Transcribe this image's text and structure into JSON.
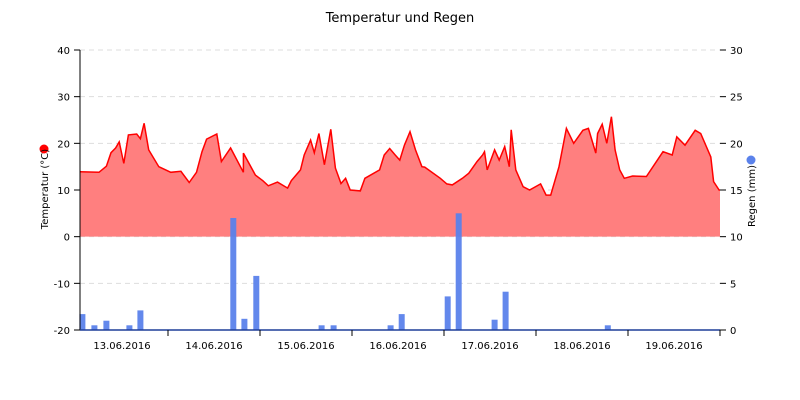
{
  "chart_data": {
    "type": "area+bar",
    "title": "Temperatur und Regen",
    "xlabel": "",
    "x_tick_labels": [
      "13.06.2016",
      "14.06.2016",
      "15.06.2016",
      "16.06.2016",
      "17.06.2016",
      "18.06.2016",
      "19.06.2016"
    ],
    "y_left": {
      "label": "Temperatur (°C)",
      "ticks": [
        40,
        30,
        20,
        10,
        0,
        -10,
        -20
      ],
      "ylim": [
        -20,
        40
      ],
      "legend_color": "#ff0000"
    },
    "y_right": {
      "label": "Regen (mm)",
      "ticks": [
        30,
        25,
        20,
        15,
        10,
        5,
        0
      ],
      "ylim": [
        0,
        30
      ],
      "legend_color": "#5b82eb"
    },
    "grid": true,
    "series": [
      {
        "name": "Temperatur (°C)",
        "type": "area",
        "axis": "left",
        "line_color": "#ff0000",
        "fill_color": "#ff7f7f",
        "x_days": [
          0.0,
          0.25,
          0.33,
          0.38,
          0.43,
          0.47,
          0.52,
          0.57,
          0.66,
          0.7,
          0.74,
          0.79,
          0.9,
          1.03,
          1.14,
          1.23,
          1.31,
          1.37,
          1.42,
          1.53,
          1.58,
          1.68,
          1.82,
          1.82,
          1.95,
          2.03,
          2.09,
          2.19,
          2.3,
          2.34,
          2.44,
          2.48,
          2.55,
          2.59,
          2.64,
          2.7,
          2.77,
          2.82,
          2.88,
          2.93,
          2.98,
          3.09,
          3.14,
          3.3,
          3.35,
          3.41,
          3.47,
          3.52,
          3.57,
          3.63,
          3.69,
          3.76,
          3.79,
          3.96,
          4.03,
          4.09,
          4.2,
          4.27,
          4.36,
          4.42,
          4.44,
          4.47,
          4.55,
          4.6,
          4.66,
          4.71,
          4.73,
          4.78,
          4.86,
          4.93,
          5.05,
          5.11,
          5.16,
          5.25,
          5.33,
          5.41,
          5.51,
          5.57,
          5.65,
          5.67,
          5.72,
          5.77,
          5.82,
          5.86,
          5.91,
          5.96,
          6.05,
          6.2,
          6.32,
          6.38,
          6.48,
          6.53,
          6.62,
          6.73,
          6.79,
          6.9,
          6.93,
          6.99,
          7.06,
          7.13
        ],
        "values": [
          13.9,
          13.8,
          15.1,
          18.0,
          19.0,
          20.3,
          15.7,
          21.8,
          22.0,
          21.0,
          24.3,
          18.6,
          15.0,
          13.8,
          14.0,
          11.6,
          13.8,
          18.2,
          20.9,
          22.0,
          16.1,
          19.0,
          13.8,
          17.9,
          13.2,
          12.0,
          10.9,
          11.7,
          10.4,
          12.0,
          14.3,
          17.5,
          20.7,
          18.0,
          22.1,
          15.4,
          23.0,
          14.7,
          11.4,
          12.5,
          10.0,
          9.8,
          12.5,
          14.3,
          17.5,
          18.9,
          17.5,
          16.4,
          19.6,
          22.5,
          18.6,
          15.0,
          14.9,
          12.5,
          11.3,
          11.1,
          12.5,
          13.6,
          16.1,
          17.5,
          18.2,
          14.3,
          18.6,
          16.4,
          19.3,
          15.0,
          22.9,
          14.3,
          10.7,
          10.0,
          11.3,
          8.9,
          8.9,
          15.0,
          23.2,
          20.0,
          22.8,
          23.2,
          17.9,
          22.1,
          24.1,
          20.0,
          25.7,
          18.6,
          14.3,
          12.5,
          13.0,
          12.9,
          16.4,
          18.2,
          17.5,
          21.4,
          19.6,
          22.8,
          22.1,
          17.1,
          11.8,
          10.0,
          10.0,
          10.0
        ]
      },
      {
        "name": "Regen (mm)",
        "type": "bar",
        "axis": "right",
        "color": "#5b82eb",
        "x_days": [
          0.07,
          0.2,
          0.33,
          0.58,
          0.7,
          1.71,
          1.83,
          1.96,
          2.67,
          2.8,
          3.42,
          3.54,
          4.04,
          4.16,
          4.55,
          4.67,
          5.78
        ],
        "values": [
          1.7,
          0.5,
          1.0,
          0.5,
          2.1,
          12.0,
          1.2,
          5.8,
          0.5,
          0.5,
          0.5,
          1.7,
          3.6,
          12.5,
          1.1,
          4.1,
          0.5
        ]
      }
    ]
  }
}
